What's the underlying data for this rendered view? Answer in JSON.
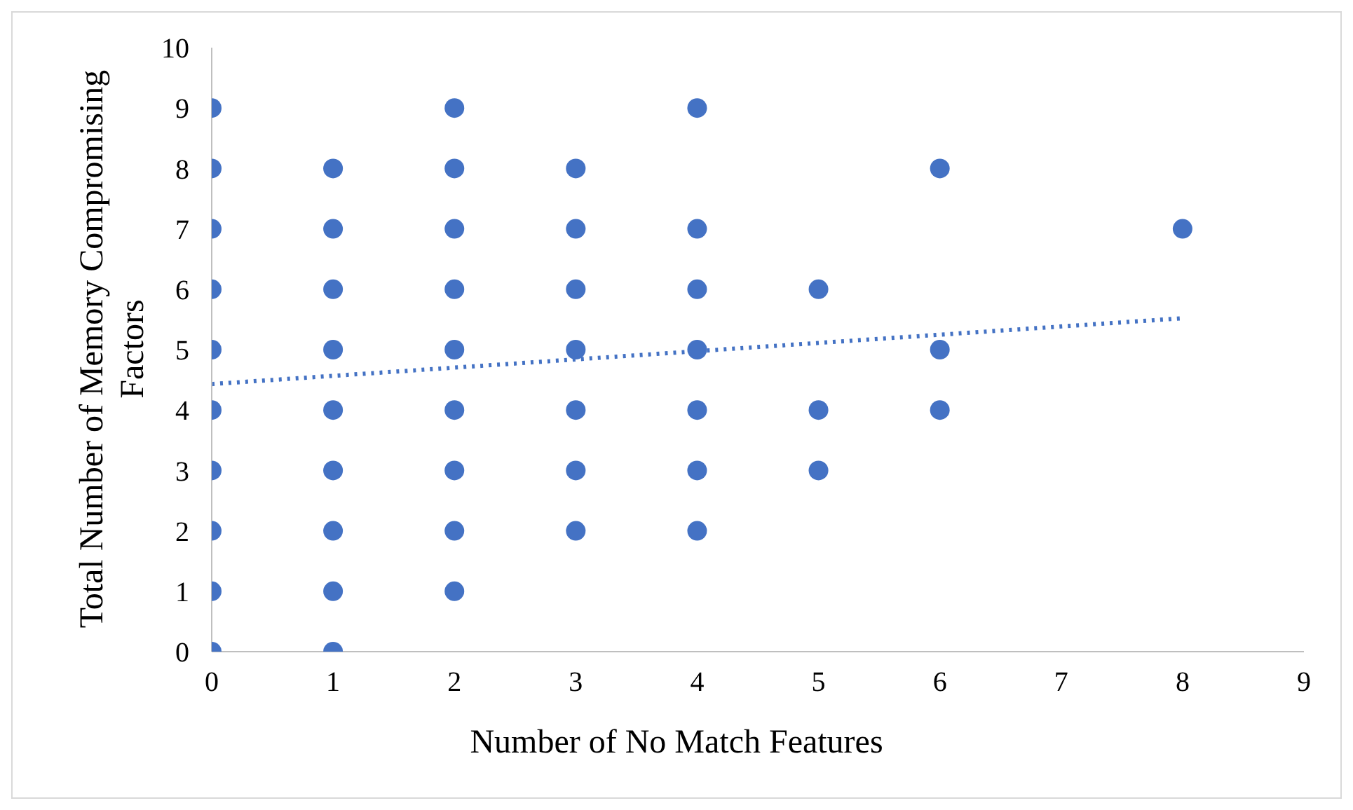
{
  "chart_data": {
    "type": "scatter",
    "xlabel": "Number of No Match Features",
    "ylabel": "Total Number of Memory Compromising Factors",
    "xlim": [
      0,
      9
    ],
    "xticks": [
      0,
      1,
      2,
      3,
      4,
      5,
      6,
      7,
      8,
      9
    ],
    "ylim": [
      0,
      10
    ],
    "yticks": [
      0,
      1,
      2,
      3,
      4,
      5,
      6,
      7,
      8,
      9,
      10
    ],
    "series": [
      {
        "type": "scatter",
        "color": "#4472c4",
        "marker": "circle",
        "x": [
          0,
          0,
          0,
          0,
          0,
          0,
          0,
          0,
          0,
          0,
          1,
          1,
          1,
          1,
          1,
          1,
          1,
          1,
          1,
          2,
          2,
          2,
          2,
          2,
          2,
          2,
          2,
          2,
          3,
          3,
          3,
          3,
          3,
          3,
          3,
          4,
          4,
          4,
          4,
          4,
          4,
          4,
          5,
          5,
          5,
          6,
          6,
          6,
          8
        ],
        "values": [
          0,
          1,
          2,
          3,
          4,
          5,
          6,
          7,
          8,
          9,
          0,
          1,
          2,
          3,
          4,
          5,
          6,
          7,
          8,
          1,
          2,
          3,
          4,
          5,
          6,
          7,
          8,
          9,
          2,
          3,
          4,
          5,
          6,
          7,
          8,
          2,
          3,
          4,
          5,
          6,
          7,
          9,
          3,
          4,
          6,
          4,
          5,
          8,
          7
        ]
      },
      {
        "type": "line",
        "color": "#4472c4",
        "marker": "none",
        "line_style": "dotted",
        "x": [
          0,
          8
        ],
        "values": [
          4.43,
          5.52
        ]
      }
    ]
  }
}
